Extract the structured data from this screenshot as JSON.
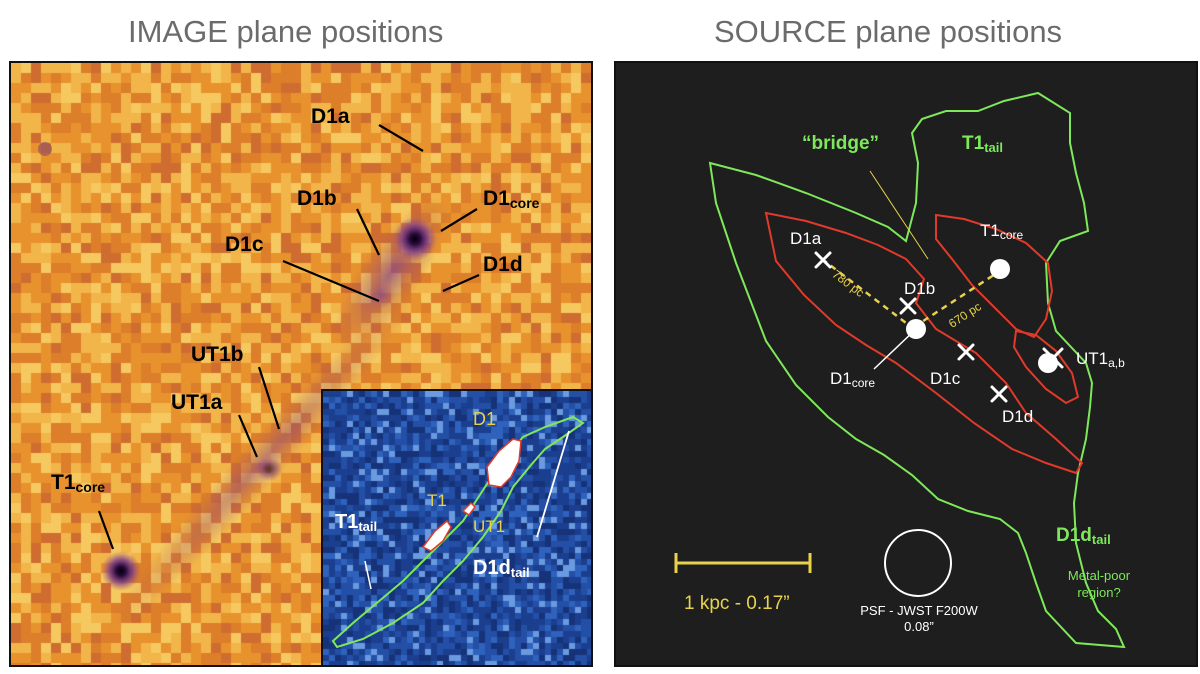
{
  "titles": {
    "left": "IMAGE plane positions",
    "right": "SOURCE plane positions"
  },
  "image_plane": {
    "labels": {
      "D1a": "D1a",
      "D1b": "D1b",
      "D1core": {
        "main": "D1",
        "sub": "core"
      },
      "D1c": "D1c",
      "D1d": "D1d",
      "UT1b": "UT1b",
      "UT1a": "UT1a",
      "T1core": {
        "main": "T1",
        "sub": "core"
      }
    },
    "inset": {
      "D1": "D1",
      "T1": "T1",
      "UT1": "UT1",
      "T1tail": {
        "main": "T1",
        "sub": "tail"
      },
      "D1dtail": {
        "main": "D1d",
        "sub": "tail"
      }
    }
  },
  "source_plane": {
    "bridge": "“bridge”",
    "T1tail": {
      "main": "T1",
      "sub": "tail"
    },
    "D1dtail": {
      "main": "D1d",
      "sub": "tail"
    },
    "metal_poor": [
      "Metal-poor",
      "region?"
    ],
    "points": {
      "D1a": "D1a",
      "D1b": "D1b",
      "D1c": "D1c",
      "D1d": "D1d",
      "T1core": {
        "main": "T1",
        "sub": "core"
      },
      "D1core": {
        "main": "D1",
        "sub": "core"
      },
      "UT1ab": {
        "main": "UT1",
        "sub": "a,b"
      }
    },
    "distances": {
      "d1": "780 pc",
      "d2": "670 pc"
    },
    "scale_bar": "1 kpc - 0.17”",
    "psf": [
      "PSF - JWST F200W",
      "0.08”"
    ]
  },
  "colors": {
    "image_bg": "#e8922e",
    "inset_bg": "#1b3f8e",
    "source_bg": "#1e1e1e",
    "green_contour": "#7ee85a",
    "red_contour": "#e03a2a",
    "yellow": "#e8d24a"
  }
}
